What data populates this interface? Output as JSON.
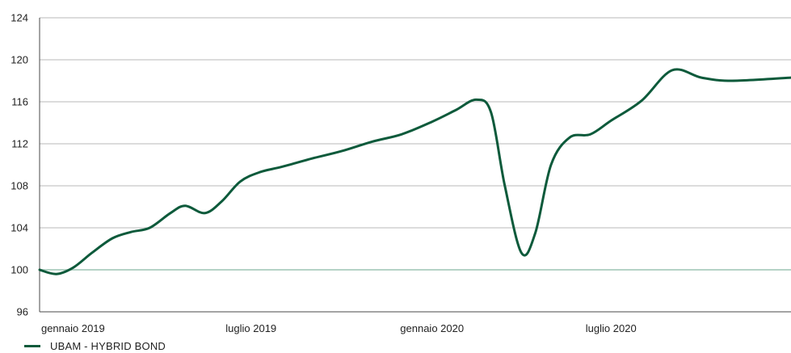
{
  "chart_data": {
    "type": "line",
    "title": "",
    "xlabel": "",
    "ylabel": "",
    "ylim": [
      96,
      124
    ],
    "yticks": [
      96,
      100,
      104,
      108,
      112,
      116,
      120,
      124
    ],
    "x_tick_labels": [
      {
        "label": "gennaio 2019",
        "date": "2019-01-01"
      },
      {
        "label": "luglio 2019",
        "date": "2019-07-01"
      },
      {
        "label": "gennaio 2020",
        "date": "2020-01-01"
      },
      {
        "label": "luglio 2020",
        "date": "2020-07-01"
      }
    ],
    "xlim": [
      "2018-11-28",
      "2020-12-31"
    ],
    "grid": true,
    "baseline": {
      "value": 100,
      "color": "#b5d3c6"
    },
    "legend_position": "bottom-left",
    "series": [
      {
        "name": "UBAM - HYBRID BOND",
        "color": "#0d5a3b",
        "points": [
          {
            "date": "2018-11-28",
            "value": 100.0
          },
          {
            "date": "2018-12-15",
            "value": 99.6
          },
          {
            "date": "2019-01-01",
            "value": 100.2
          },
          {
            "date": "2019-01-20",
            "value": 101.6
          },
          {
            "date": "2019-02-10",
            "value": 103.0
          },
          {
            "date": "2019-03-01",
            "value": 103.6
          },
          {
            "date": "2019-03-20",
            "value": 104.0
          },
          {
            "date": "2019-04-10",
            "value": 105.4
          },
          {
            "date": "2019-04-25",
            "value": 106.1
          },
          {
            "date": "2019-05-15",
            "value": 105.4
          },
          {
            "date": "2019-06-01",
            "value": 106.5
          },
          {
            "date": "2019-06-20",
            "value": 108.4
          },
          {
            "date": "2019-07-10",
            "value": 109.3
          },
          {
            "date": "2019-08-01",
            "value": 109.8
          },
          {
            "date": "2019-09-01",
            "value": 110.6
          },
          {
            "date": "2019-10-01",
            "value": 111.3
          },
          {
            "date": "2019-11-01",
            "value": 112.2
          },
          {
            "date": "2019-12-01",
            "value": 112.9
          },
          {
            "date": "2020-01-01",
            "value": 114.1
          },
          {
            "date": "2020-01-25",
            "value": 115.2
          },
          {
            "date": "2020-02-15",
            "value": 116.2
          },
          {
            "date": "2020-03-01",
            "value": 115.0
          },
          {
            "date": "2020-03-15",
            "value": 108.0
          },
          {
            "date": "2020-04-01",
            "value": 101.6
          },
          {
            "date": "2020-04-15",
            "value": 103.5
          },
          {
            "date": "2020-05-01",
            "value": 110.0
          },
          {
            "date": "2020-05-20",
            "value": 112.6
          },
          {
            "date": "2020-06-10",
            "value": 112.9
          },
          {
            "date": "2020-07-01",
            "value": 114.2
          },
          {
            "date": "2020-08-01",
            "value": 116.1
          },
          {
            "date": "2020-09-01",
            "value": 119.0
          },
          {
            "date": "2020-10-01",
            "value": 118.3
          },
          {
            "date": "2020-11-01",
            "value": 118.0
          },
          {
            "date": "2020-12-31",
            "value": 118.3
          }
        ]
      }
    ]
  }
}
